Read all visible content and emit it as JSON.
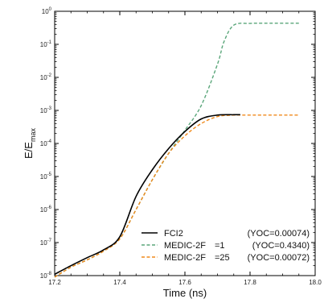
{
  "chart_data": {
    "type": "line",
    "xlabel": "Time (ns)",
    "ylabel_main": "E/E",
    "ylabel_sub": "max",
    "xlim": [
      17.2,
      18.0
    ],
    "ylim": [
      1e-08,
      1
    ],
    "yscale": "log",
    "x_ticks": [
      17.2,
      17.4,
      17.6,
      17.8,
      18.0
    ],
    "x_tick_labels": [
      "17.2",
      "17.4",
      "17.6",
      "17.8",
      "18.0"
    ],
    "y_ticks": [
      -8,
      -7,
      -6,
      -5,
      -4,
      -3,
      -2,
      -1,
      0
    ],
    "grid": false,
    "legend_position": "bottom-right",
    "series": [
      {
        "name": "FCI2",
        "legend_label": "FCI2",
        "legend_note": "(YOC=0.00074)",
        "color": "#000000",
        "dash": "solid",
        "x": [
          17.2,
          17.25,
          17.3,
          17.35,
          17.4,
          17.45,
          17.5,
          17.55,
          17.6,
          17.65,
          17.7,
          17.75,
          17.77
        ],
        "y": [
          1.1e-08,
          2e-08,
          3.5e-08,
          6e-08,
          1.5e-07,
          2.5e-06,
          1.6e-05,
          7e-05,
          0.00023,
          0.00055,
          0.00072,
          0.00074,
          0.00074
        ]
      },
      {
        "name": "MEDIC-2F =1",
        "legend_label": "MEDIC-2F",
        "legend_param": "=1",
        "legend_note": "(YOC=0.4340)",
        "color": "#5aa67a",
        "dash": "dashed",
        "x": [
          17.2,
          17.25,
          17.3,
          17.35,
          17.4,
          17.45,
          17.5,
          17.55,
          17.6,
          17.65,
          17.7,
          17.72,
          17.75,
          17.8,
          17.85,
          17.95
        ],
        "y": [
          9e-09,
          1.8e-08,
          3e-08,
          5.5e-08,
          1.3e-07,
          1e-06,
          8e-06,
          5e-05,
          0.00025,
          0.0014,
          0.025,
          0.12,
          0.38,
          0.43,
          0.434,
          0.434
        ]
      },
      {
        "name": "MEDIC-2F =25",
        "legend_label": "MEDIC-2F",
        "legend_param": "=25",
        "legend_note": "(YOC=0.00072)",
        "color": "#f08a1c",
        "dash": "dashed",
        "x": [
          17.2,
          17.25,
          17.3,
          17.35,
          17.4,
          17.45,
          17.5,
          17.55,
          17.6,
          17.65,
          17.7,
          17.75,
          17.8,
          17.95
        ],
        "y": [
          9e-09,
          1.8e-08,
          3e-08,
          5.5e-08,
          1.3e-07,
          1e-06,
          8e-06,
          5e-05,
          0.00017,
          0.0004,
          0.00065,
          0.00072,
          0.00072,
          0.00072
        ]
      }
    ]
  }
}
